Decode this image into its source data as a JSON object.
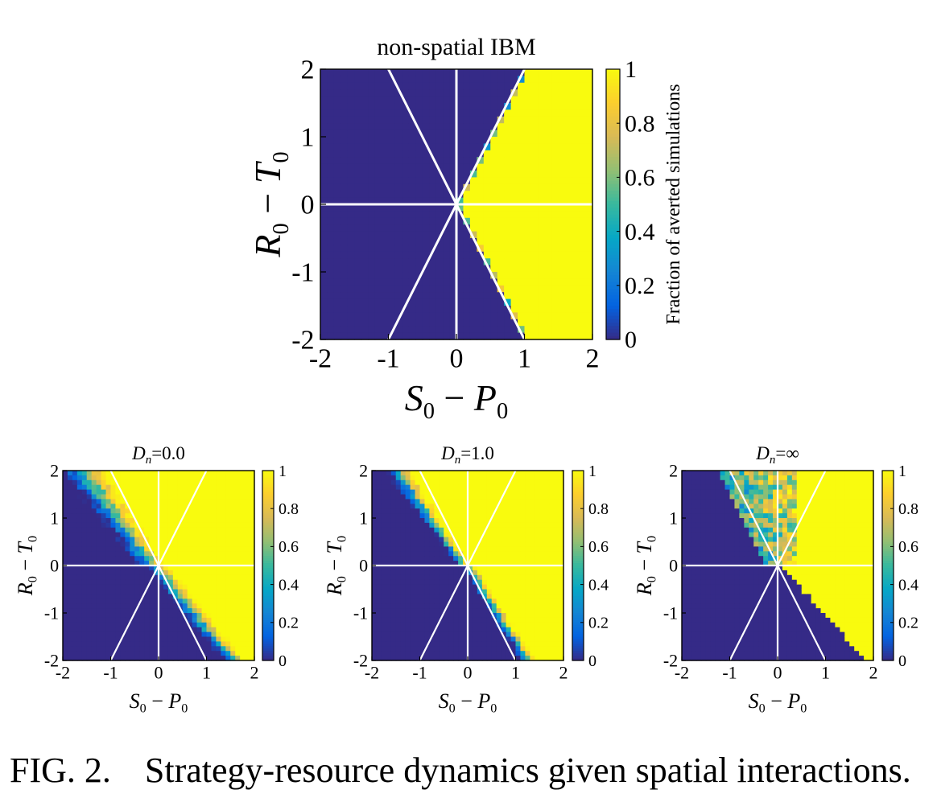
{
  "caption": {
    "number": "FIG. 2.",
    "text": "Strategy-resource dynamics given spatial interactions."
  },
  "colormap": {
    "name": "parula",
    "stops": [
      "#352a87",
      "#0363e1",
      "#1485d4",
      "#06a7c6",
      "#38b99e",
      "#92bf73",
      "#d9ba56",
      "#fcce2e",
      "#f9fb0e"
    ]
  },
  "chart_data": [
    {
      "type": "heatmap",
      "title": "non-spatial IBM",
      "xlabel_main": "S",
      "xlabel_sub": "0",
      "xlabel_op": "−",
      "xlabel_main2": "P",
      "xlabel_sub2": "0",
      "ylabel_main": "R",
      "ylabel_sub": "0",
      "ylabel_op": "−",
      "ylabel_main2": "T",
      "ylabel_sub2": "0",
      "xlim": [
        -2,
        2
      ],
      "ylim": [
        -2,
        2
      ],
      "xticks": [
        "-2",
        "-1",
        "0",
        "1",
        "2"
      ],
      "yticks": [
        "-2",
        "-1",
        "0",
        "1",
        "2"
      ],
      "colorbar": {
        "label": "Fraction of averted simulations",
        "range": [
          0,
          1
        ],
        "ticks": [
          "0",
          "0.2",
          "0.4",
          "0.6",
          "0.8",
          "1"
        ]
      },
      "reference_lines": {
        "slopes": [
          -2,
          2
        ],
        "horizontal_y": 0,
        "vertical_x": 0,
        "color": "#ffffff"
      },
      "region_model": "nonspatial",
      "description_of_values": {
        "low_region_value": 0,
        "high_region_value": 1,
        "boundary": "x = |y|/2"
      }
    },
    {
      "type": "heatmap",
      "title_main": "D",
      "title_sub": "n",
      "title_eq": "=0.0",
      "xlabel_main": "S",
      "xlabel_sub": "0",
      "xlabel_op": "−",
      "xlabel_main2": "P",
      "xlabel_sub2": "0",
      "ylabel_main": "R",
      "ylabel_sub": "0",
      "ylabel_op": "−",
      "ylabel_main2": "T",
      "ylabel_sub2": "0",
      "xlim": [
        -2,
        2
      ],
      "ylim": [
        -2,
        2
      ],
      "xticks": [
        "-2",
        "-1",
        "0",
        "1",
        "2"
      ],
      "yticks": [
        "-2",
        "-1",
        "0",
        "1",
        "2"
      ],
      "colorbar": {
        "range": [
          0,
          1
        ],
        "ticks": [
          "0",
          "0.2",
          "0.4",
          "0.6",
          "0.8",
          "1"
        ]
      },
      "reference_lines": {
        "slopes": [
          -2,
          2
        ],
        "horizontal_y": 0,
        "vertical_x": 0,
        "color": "#ffffff"
      },
      "region_model": "dn0"
    },
    {
      "type": "heatmap",
      "title_main": "D",
      "title_sub": "n",
      "title_eq": "=1.0",
      "xlabel_main": "S",
      "xlabel_sub": "0",
      "xlabel_op": "−",
      "xlabel_main2": "P",
      "xlabel_sub2": "0",
      "ylabel_main": "R",
      "ylabel_sub": "0",
      "ylabel_op": "−",
      "ylabel_main2": "T",
      "ylabel_sub2": "0",
      "xlim": [
        -2,
        2
      ],
      "ylim": [
        -2,
        2
      ],
      "xticks": [
        "-2",
        "-1",
        "0",
        "1",
        "2"
      ],
      "yticks": [
        "-2",
        "-1",
        "0",
        "1",
        "2"
      ],
      "colorbar": {
        "range": [
          0,
          1
        ],
        "ticks": [
          "0",
          "0.2",
          "0.4",
          "0.6",
          "0.8",
          "1"
        ]
      },
      "reference_lines": {
        "slopes": [
          -2,
          2
        ],
        "horizontal_y": 0,
        "vertical_x": 0,
        "color": "#ffffff"
      },
      "region_model": "dn1"
    },
    {
      "type": "heatmap",
      "title_main": "D",
      "title_sub": "n",
      "title_eq": "=∞",
      "xlabel_main": "S",
      "xlabel_sub": "0",
      "xlabel_op": "−",
      "xlabel_main2": "P",
      "xlabel_sub2": "0",
      "ylabel_main": "R",
      "ylabel_sub": "0",
      "ylabel_op": "−",
      "ylabel_main2": "T",
      "ylabel_sub2": "0",
      "xlim": [
        -2,
        2
      ],
      "ylim": [
        -2,
        2
      ],
      "xticks": [
        "-2",
        "-1",
        "0",
        "1",
        "2"
      ],
      "yticks": [
        "-2",
        "-1",
        "0",
        "1",
        "2"
      ],
      "colorbar": {
        "range": [
          0,
          1
        ],
        "ticks": [
          "0",
          "0.2",
          "0.4",
          "0.6",
          "0.8",
          "1"
        ]
      },
      "reference_lines": {
        "slopes": [
          -2,
          2
        ],
        "horizontal_y": 0,
        "vertical_x": 0,
        "color": "#ffffff"
      },
      "region_model": "dninf"
    }
  ]
}
